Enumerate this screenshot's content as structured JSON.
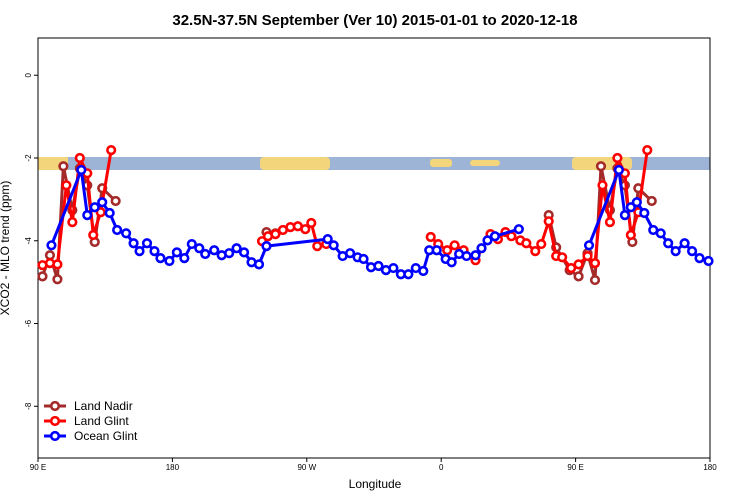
{
  "chart_data": {
    "type": "line",
    "title": "32.5N-37.5N September (Ver 10)   2015-01-01 to 2020-12-18",
    "x_label": "Longitude",
    "y_label": "XCO2 - MLO trend (ppm)",
    "xlim": [
      90,
      540
    ],
    "ylim": [
      -9.25,
      0.9
    ],
    "xticks": [
      {
        "value": 90,
        "label": "90 E"
      },
      {
        "value": 180,
        "label": "180"
      },
      {
        "value": 270,
        "label": "90 W"
      },
      {
        "value": 360,
        "label": "0"
      },
      {
        "value": 450,
        "label": "90 E"
      },
      {
        "value": 540,
        "label": "180"
      }
    ],
    "yticks": [
      0,
      -2,
      -4,
      -6,
      -8
    ],
    "legend": "bottom-left",
    "series": [
      {
        "name": "Land Nadir",
        "color": "#a52a2a",
        "x": [
          93,
          98,
          103,
          107,
          113,
          118,
          123,
          128,
          133,
          142,
          null,
          243,
          249,
          null,
          432,
          437,
          446,
          452,
          458,
          463,
          467,
          473,
          478,
          483,
          488,
          492,
          501
        ],
        "values": [
          -4.86,
          -4.35,
          -4.93,
          -2.2,
          -3.26,
          -2.25,
          -2.66,
          -4.03,
          -2.73,
          -3.04,
          null,
          -3.79,
          -3.82,
          null,
          -3.38,
          -4.16,
          -4.71,
          -4.86,
          -4.3,
          -4.95,
          -2.2,
          -3.26,
          -2.25,
          -2.66,
          -4.03,
          -2.73,
          -3.04
        ]
      },
      {
        "name": "Land Glint",
        "color": "#ff0000",
        "x": [
          93,
          98,
          103,
          109,
          113,
          118,
          123,
          127,
          132,
          139,
          null,
          240,
          244,
          249,
          254,
          259,
          264,
          269,
          273,
          277,
          283,
          null,
          353,
          358,
          364,
          369,
          375,
          383,
          393,
          398,
          403,
          407,
          413,
          417,
          423,
          427,
          432,
          437,
          441,
          447,
          452,
          458,
          463,
          468,
          473,
          478,
          483,
          487,
          492,
          498
        ],
        "values": [
          -4.59,
          -4.54,
          -4.57,
          -2.66,
          -3.55,
          -2.0,
          -2.37,
          -3.86,
          -3.31,
          -1.81,
          null,
          -4.01,
          -3.89,
          -3.84,
          -3.74,
          -3.67,
          -3.65,
          -3.72,
          -3.57,
          -4.13,
          -4.08,
          null,
          -3.91,
          -4.08,
          -4.23,
          -4.11,
          -4.23,
          -4.47,
          -3.84,
          -3.96,
          -3.79,
          -3.89,
          -3.99,
          -4.06,
          -4.25,
          -4.08,
          -3.53,
          -4.37,
          -4.4,
          -4.66,
          -4.57,
          -4.37,
          -4.54,
          -2.66,
          -3.55,
          -2.0,
          -2.37,
          -3.86,
          -3.31,
          -1.81
        ]
      },
      {
        "name": "Ocean Glint",
        "color": "#0000ff",
        "x": [
          99,
          119,
          123,
          128,
          133,
          138,
          143,
          149,
          154,
          158,
          163,
          168,
          172,
          178,
          183,
          188,
          193,
          198,
          202,
          208,
          213,
          218,
          223,
          228,
          233,
          238,
          243,
          284,
          288,
          294,
          299,
          304,
          308,
          313,
          318,
          323,
          328,
          333,
          338,
          343,
          348,
          352,
          357,
          363,
          367,
          372,
          377,
          383,
          387,
          391,
          396,
          412,
          null,
          459,
          479,
          483,
          487,
          491,
          496,
          502,
          507,
          512,
          517,
          523,
          528,
          533,
          539
        ],
        "values": [
          -4.11,
          -2.29,
          -3.38,
          -3.19,
          -3.07,
          -3.33,
          -3.74,
          -3.82,
          -4.06,
          -4.25,
          -4.06,
          -4.25,
          -4.42,
          -4.49,
          -4.28,
          -4.42,
          -4.08,
          -4.18,
          -4.32,
          -4.23,
          -4.35,
          -4.3,
          -4.18,
          -4.28,
          -4.52,
          -4.57,
          -4.13,
          -3.96,
          -4.11,
          -4.37,
          -4.3,
          -4.4,
          -4.44,
          -4.64,
          -4.61,
          -4.71,
          -4.66,
          -4.81,
          -4.81,
          -4.66,
          -4.73,
          -4.23,
          -4.23,
          -4.44,
          -4.52,
          -4.32,
          -4.37,
          -4.35,
          -4.18,
          -3.99,
          -3.89,
          -3.72,
          null,
          -4.11,
          -2.29,
          -3.38,
          -3.19,
          -3.07,
          -3.33,
          -3.74,
          -3.82,
          -4.06,
          -4.25,
          -4.06,
          -4.25,
          -4.42,
          -4.49
        ]
      }
    ]
  }
}
